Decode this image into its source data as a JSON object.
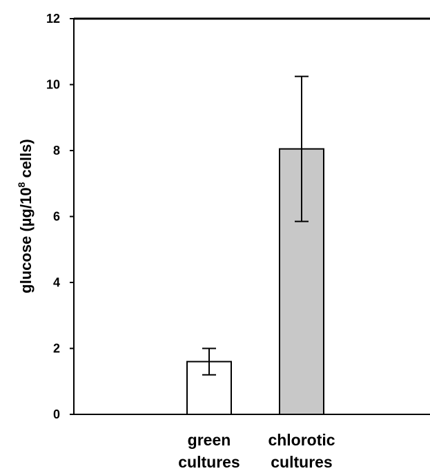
{
  "chart_data": {
    "type": "bar",
    "categories": [
      [
        "green",
        "cultures"
      ],
      [
        "chlorotic",
        "cultures"
      ]
    ],
    "values": [
      1.6,
      8.05
    ],
    "error_low": [
      1.2,
      5.85
    ],
    "error_high": [
      2.0,
      10.25
    ],
    "bar_colors": [
      "#ffffff",
      "#c8c8c8"
    ],
    "ylabel": {
      "main": "glucose (µg/10",
      "sup": "8",
      "tail": " cells)"
    },
    "yticks": [
      "0",
      "2",
      "4",
      "6",
      "8",
      "10",
      "12"
    ],
    "ylim": [
      0,
      12
    ],
    "grid": false,
    "legend": "none"
  }
}
